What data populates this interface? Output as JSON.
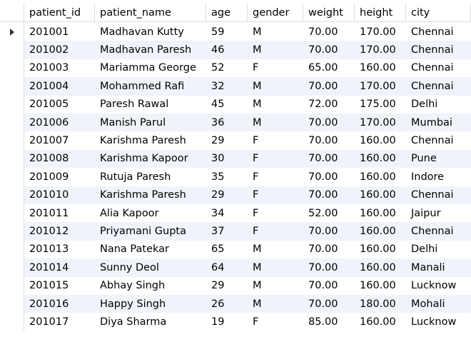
{
  "columns": [
    "patient_id",
    "patient_name",
    "age",
    "gender",
    "weight",
    "height",
    "city"
  ],
  "rows": [
    [
      "201001",
      "Madhavan Kutty",
      "59",
      "M",
      "70.00",
      "170.00",
      "Chennai"
    ],
    [
      "201002",
      "Madhavan Paresh",
      "46",
      "M",
      "70.00",
      "170.00",
      "Chennai"
    ],
    [
      "201003",
      "Mariamma George",
      "52",
      "F",
      "65.00",
      "160.00",
      "Chennai"
    ],
    [
      "201004",
      "Mohammed Rafi",
      "32",
      "M",
      "70.00",
      "170.00",
      "Chennai"
    ],
    [
      "201005",
      "Paresh Rawal",
      "45",
      "M",
      "72.00",
      "175.00",
      "Delhi"
    ],
    [
      "201006",
      "Manish Parul",
      "36",
      "M",
      "70.00",
      "170.00",
      "Mumbai"
    ],
    [
      "201007",
      "Karishma Paresh",
      "29",
      "F",
      "70.00",
      "160.00",
      "Chennai"
    ],
    [
      "201008",
      "Karishma Kapoor",
      "30",
      "F",
      "70.00",
      "160.00",
      "Pune"
    ],
    [
      "201009",
      "Rutuja Paresh",
      "35",
      "F",
      "70.00",
      "160.00",
      "Indore"
    ],
    [
      "201010",
      "Karishma Paresh",
      "29",
      "F",
      "70.00",
      "160.00",
      "Chennai"
    ],
    [
      "201011",
      "Alia Kapoor",
      "34",
      "F",
      "52.00",
      "160.00",
      "Jaipur"
    ],
    [
      "201012",
      "Priyamani Gupta",
      "37",
      "F",
      "70.00",
      "160.00",
      "Chennai"
    ],
    [
      "201013",
      "Nana Patekar",
      "65",
      "M",
      "70.00",
      "160.00",
      "Delhi"
    ],
    [
      "201014",
      "Sunny Deol",
      "64",
      "M",
      "70.00",
      "160.00",
      "Manali"
    ],
    [
      "201015",
      "Abhay Singh",
      "29",
      "M",
      "70.00",
      "160.00",
      "Lucknow"
    ],
    [
      "201016",
      "Happy Singh",
      "26",
      "M",
      "70.00",
      "180.00",
      "Mohali"
    ],
    [
      "201017",
      "Diya Sharma",
      "19",
      "F",
      "85.00",
      "160.00",
      "Lucknow"
    ]
  ],
  "selected_row_index": 0,
  "colors": {
    "alt_row": "#f0f3fa",
    "grid_line": "#dcdcdc"
  }
}
